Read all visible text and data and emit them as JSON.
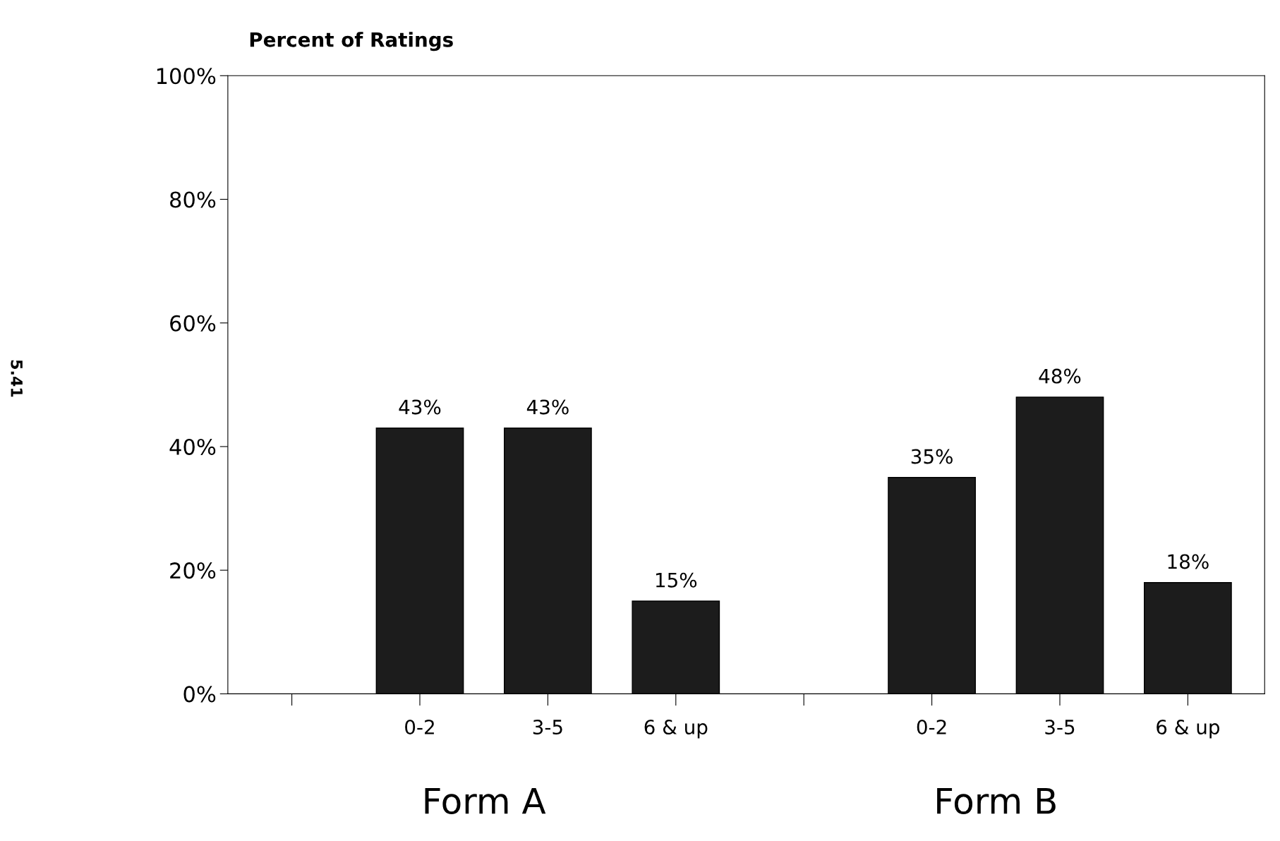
{
  "chart_data": {
    "type": "bar",
    "title": "Percent of Ratings",
    "categories": [
      null,
      "0-2",
      "3-5",
      "6 & up",
      null,
      "0-2",
      "3-5",
      "6 & up"
    ],
    "values": [
      null,
      43,
      43,
      15,
      null,
      35,
      48,
      18
    ],
    "value_labels": [
      null,
      "43%",
      "43%",
      "15%",
      null,
      "35%",
      "48%",
      "18%"
    ],
    "color": "#1c1c1c",
    "ylim": [
      0,
      100
    ],
    "yticks": [
      {
        "value": 0,
        "label": "0%"
      },
      {
        "value": 20,
        "label": "20%"
      },
      {
        "value": 40,
        "label": "40%"
      },
      {
        "value": 60,
        "label": "60%"
      },
      {
        "value": 80,
        "label": "80%"
      },
      {
        "value": 100,
        "label": "100%"
      }
    ],
    "annotations": [
      "Form A",
      "Form B",
      "5.41"
    ],
    "grid": false
  }
}
